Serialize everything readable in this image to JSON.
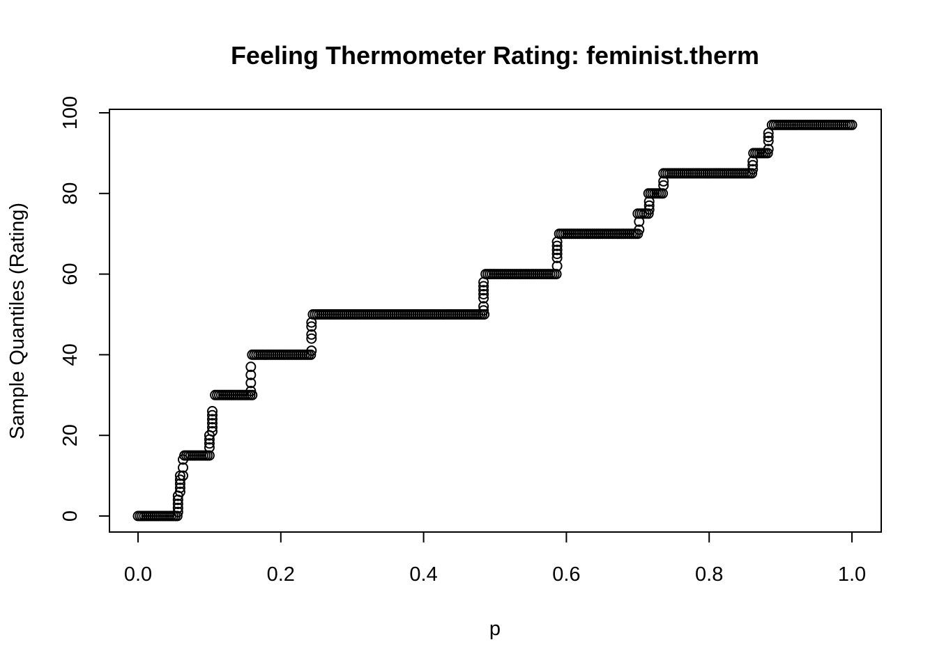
{
  "chart_data": {
    "type": "scatter",
    "title": "Feeling Thermometer Rating: feminist.therm",
    "xlabel": "p",
    "ylabel": "Sample Quantiles (Rating)",
    "xlim": [
      0,
      1
    ],
    "ylim": [
      0,
      100
    ],
    "x_ticks": [
      0.0,
      0.2,
      0.4,
      0.6,
      0.8,
      1.0
    ],
    "x_tick_labels": [
      "0.0",
      "0.2",
      "0.4",
      "0.6",
      "0.8",
      "1.0"
    ],
    "y_ticks": [
      0,
      20,
      40,
      60,
      80,
      100
    ],
    "y_tick_labels": [
      "0",
      "20",
      "40",
      "60",
      "80",
      "100"
    ],
    "grid": false,
    "marker": "open-circle",
    "color": "#000000",
    "steps": [
      {
        "value": 0,
        "p_start": 0.0,
        "p_end": 0.055
      },
      {
        "value": 15,
        "p_start": 0.065,
        "p_end": 0.1
      },
      {
        "value": 30,
        "p_start": 0.108,
        "p_end": 0.16
      },
      {
        "value": 40,
        "p_start": 0.16,
        "p_end": 0.242
      },
      {
        "value": 50,
        "p_start": 0.245,
        "p_end": 0.485
      },
      {
        "value": 60,
        "p_start": 0.487,
        "p_end": 0.586
      },
      {
        "value": 70,
        "p_start": 0.59,
        "p_end": 0.7
      },
      {
        "value": 75,
        "p_start": 0.7,
        "p_end": 0.715
      },
      {
        "value": 80,
        "p_start": 0.715,
        "p_end": 0.735
      },
      {
        "value": 85,
        "p_start": 0.736,
        "p_end": 0.86
      },
      {
        "value": 90,
        "p_start": 0.862,
        "p_end": 0.882
      },
      {
        "value": 97,
        "p_start": 0.888,
        "p_end": 1.0
      }
    ],
    "transitions": [
      {
        "p": 0.056,
        "values": [
          1,
          2,
          3,
          4,
          5
        ]
      },
      {
        "p": 0.059,
        "values": [
          6,
          7,
          8,
          9,
          10
        ]
      },
      {
        "p": 0.063,
        "values": [
          10,
          12,
          14
        ]
      },
      {
        "p": 0.1,
        "values": [
          17,
          18,
          19,
          20
        ]
      },
      {
        "p": 0.104,
        "values": [
          21,
          22,
          23,
          24,
          25,
          26
        ]
      },
      {
        "p": 0.158,
        "values": [
          31,
          33,
          35,
          37
        ]
      },
      {
        "p": 0.243,
        "values": [
          41,
          44,
          45,
          47,
          48
        ]
      },
      {
        "p": 0.484,
        "values": [
          51,
          52,
          54,
          55,
          56,
          57,
          58
        ]
      },
      {
        "p": 0.587,
        "values": [
          62,
          64,
          65,
          66,
          67,
          68
        ]
      },
      {
        "p": 0.702,
        "values": [
          71,
          73
        ]
      },
      {
        "p": 0.716,
        "values": [
          76,
          77,
          78
        ]
      },
      {
        "p": 0.736,
        "values": [
          82,
          83
        ]
      },
      {
        "p": 0.861,
        "values": [
          86,
          87,
          88
        ]
      },
      {
        "p": 0.883,
        "values": [
          91,
          93,
          94,
          95
        ]
      }
    ]
  }
}
